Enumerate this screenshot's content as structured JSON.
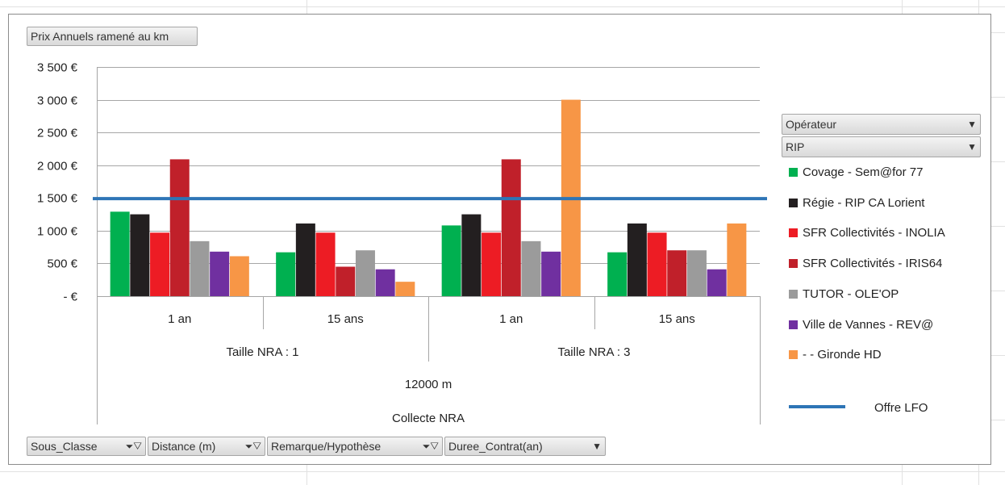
{
  "chart_data": {
    "type": "bar",
    "title_button": "Prix Annuels ramené au km",
    "y_ticks": [
      "3 500 €",
      "3 000 €",
      "2 500 €",
      "2 000 €",
      "1 500 €",
      "1 000 €",
      "500 €",
      "-   €"
    ],
    "ylim": [
      0,
      3500
    ],
    "grid": true,
    "categories": [
      "1 an",
      "15 ans",
      "1 an",
      "15 ans"
    ],
    "category_groups": [
      {
        "label": "Taille NRA : 1"
      },
      {
        "label": "Taille NRA : 3"
      }
    ],
    "axis_level3": "12000 m",
    "axis_level4": "Collecte NRA",
    "series": [
      {
        "name": "Covage - Sem@for 77",
        "color": "#00b050",
        "values": [
          1290,
          670,
          1080,
          670
        ]
      },
      {
        "name": "Régie - RIP CA Lorient",
        "color": "#231f20",
        "values": [
          1250,
          1110,
          1250,
          1110
        ]
      },
      {
        "name": "SFR Collectivités - INOLIA",
        "color": "#ed1c24",
        "values": [
          970,
          970,
          970,
          970
        ]
      },
      {
        "name": "SFR Collectivités - IRIS64",
        "color": "#c0202a",
        "values": [
          2090,
          450,
          2090,
          700
        ]
      },
      {
        "name": "TUTOR - OLE'OP",
        "color": "#9b9b9b",
        "values": [
          840,
          700,
          840,
          700
        ]
      },
      {
        "name": "Ville de Vannes - REV@",
        "color": "#7030a0",
        "values": [
          680,
          410,
          680,
          410
        ]
      },
      {
        "name": "- - Gironde HD",
        "color": "#f79646",
        "values": [
          610,
          220,
          3000,
          1110
        ]
      }
    ],
    "reference_line": {
      "name": "Offre LFO",
      "value": 1490,
      "color": "#2e75b6"
    },
    "legend_placement": "right"
  },
  "legend_filters": {
    "operateur": "Opérateur",
    "rip": "RIP"
  },
  "bottom_filters": [
    {
      "label": "Sous_Classe"
    },
    {
      "label": "Distance (m)"
    },
    {
      "label": "Remarque/Hypothèse"
    },
    {
      "label": "Duree_Contrat(an)"
    }
  ]
}
